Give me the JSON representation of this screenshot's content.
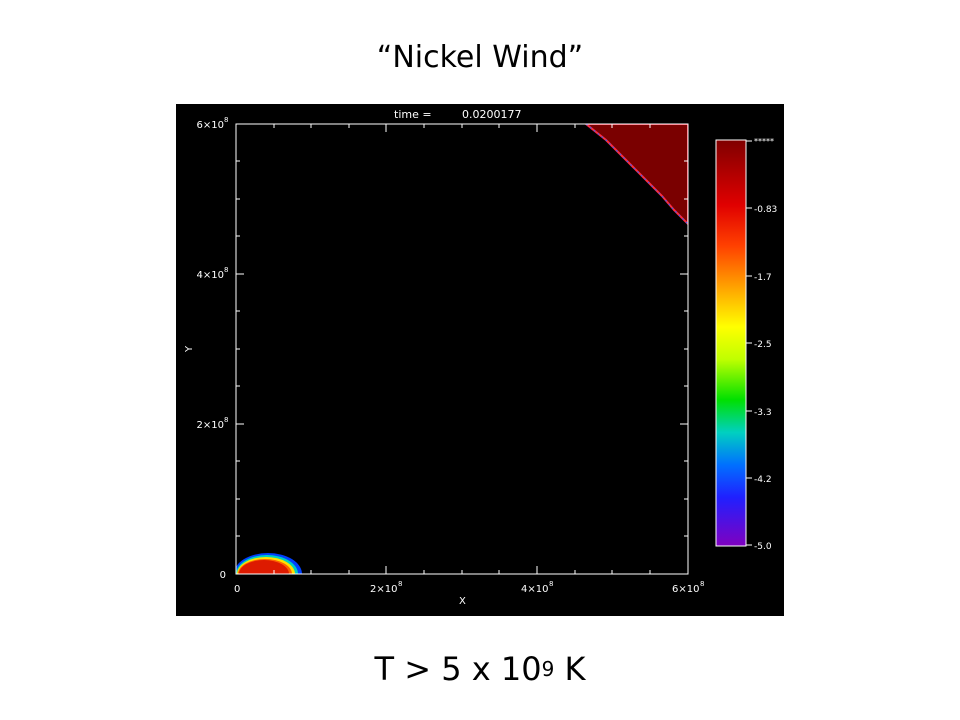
{
  "slide": {
    "title": "“Nickel Wind”",
    "caption_main": "T > 5 x 10",
    "caption_exponent": "9",
    "caption_unit": " K"
  },
  "plot": {
    "time_label": "time =",
    "time_value": "0.0200177",
    "xlabel": "X",
    "ylabel": "Y",
    "x_ticks": [
      {
        "base": "0",
        "exp": ""
      },
      {
        "base": "2×10",
        "exp": "8"
      },
      {
        "base": "4×10",
        "exp": "8"
      },
      {
        "base": "6×10",
        "exp": "8"
      }
    ],
    "y_ticks": [
      {
        "base": "0",
        "exp": ""
      },
      {
        "base": "2×10",
        "exp": "8"
      },
      {
        "base": "4×10",
        "exp": "8"
      },
      {
        "base": "6×10",
        "exp": "8"
      }
    ],
    "colorbar_labels": [
      "*****",
      "-0.83",
      "-1.7",
      "-2.5",
      "-3.3",
      "-4.2",
      "-5.0"
    ],
    "colors": {
      "background": "#000000",
      "hot_region": "#7a0000",
      "blob_core": "#dd1a00",
      "axes": "#ffffff"
    }
  }
}
